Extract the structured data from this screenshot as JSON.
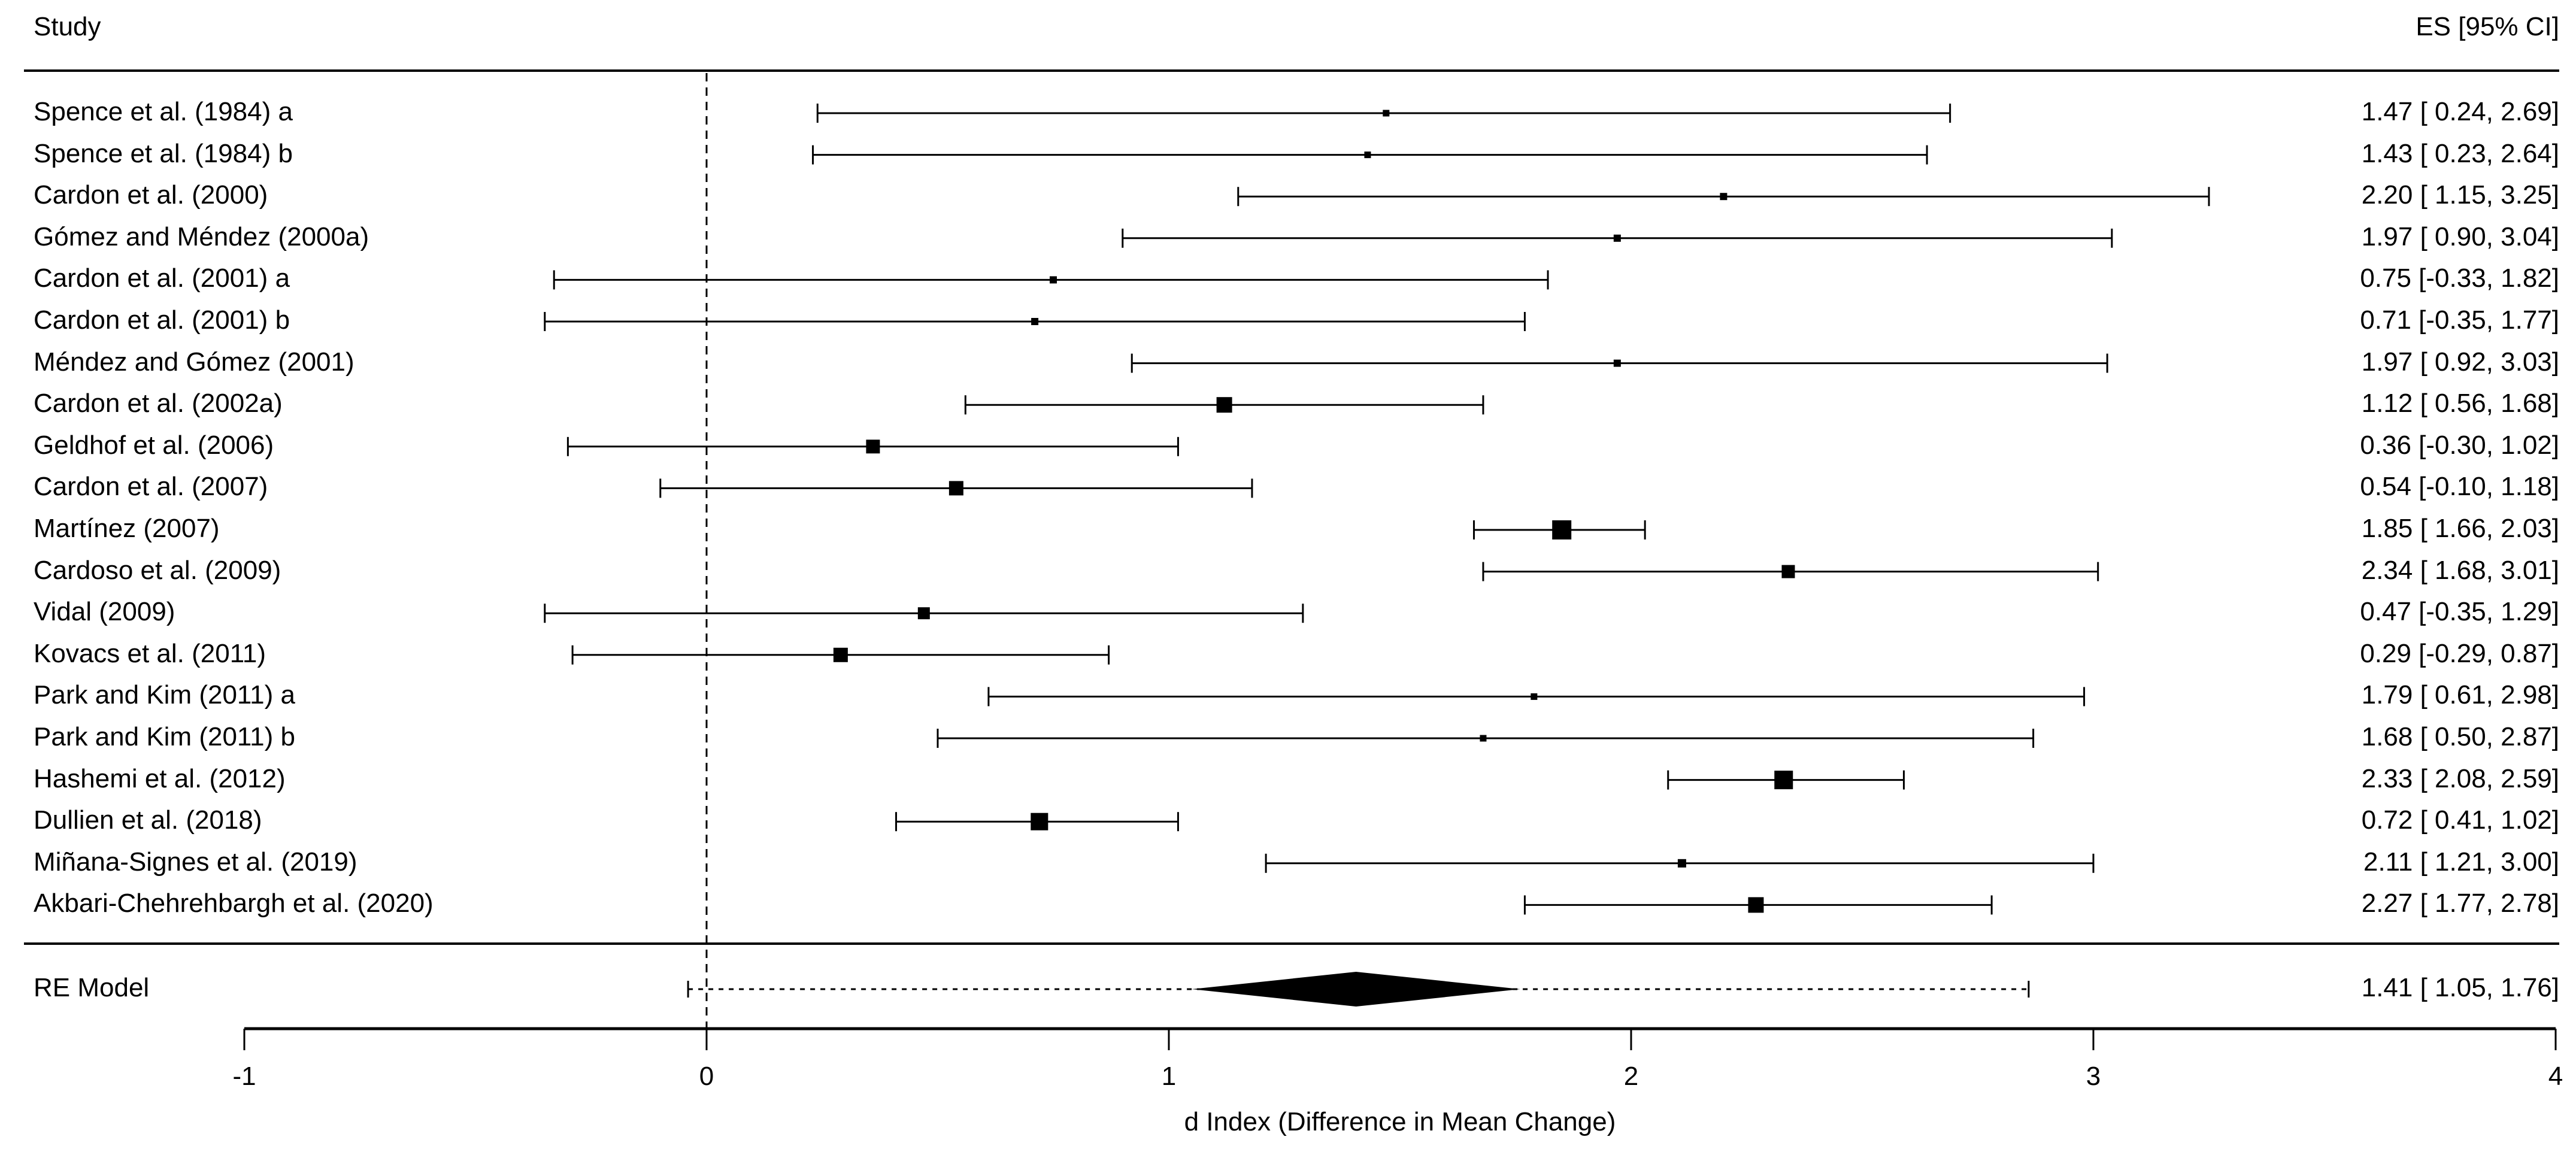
{
  "page": {
    "background": "#ffffff",
    "foreground": "#000000"
  },
  "header": {
    "study": "Study",
    "es": "ES [95% CI]"
  },
  "chart_data": {
    "type": "forest",
    "xlabel": "d Index (Difference in Mean Change)",
    "xlim": [
      -1,
      4
    ],
    "x_ticks": [
      -1,
      0,
      1,
      2,
      3,
      4
    ],
    "zero_reference": 0,
    "grid": false,
    "studies": [
      {
        "label": "Spence et al. (1984) a",
        "es": 1.47,
        "lo": 0.24,
        "hi": 2.69,
        "text": "1.47 [ 0.24, 2.69]",
        "size": 11
      },
      {
        "label": "Spence et al. (1984) b",
        "es": 1.43,
        "lo": 0.23,
        "hi": 2.64,
        "text": "1.43 [ 0.23, 2.64]",
        "size": 11
      },
      {
        "label": "Cardon et al. (2000)",
        "es": 2.2,
        "lo": 1.15,
        "hi": 3.25,
        "text": "2.20 [ 1.15, 3.25]",
        "size": 12
      },
      {
        "label": "Gómez and Méndez (2000a)",
        "es": 1.97,
        "lo": 0.9,
        "hi": 3.04,
        "text": "1.97 [ 0.90, 3.04]",
        "size": 12
      },
      {
        "label": "Cardon et al. (2001) a",
        "es": 0.75,
        "lo": -0.33,
        "hi": 1.82,
        "text": "0.75 [-0.33, 1.82]",
        "size": 12
      },
      {
        "label": "Cardon et al. (2001) b",
        "es": 0.71,
        "lo": -0.35,
        "hi": 1.77,
        "text": "0.71 [-0.35, 1.77]",
        "size": 12
      },
      {
        "label": "Méndez and Gómez (2001)",
        "es": 1.97,
        "lo": 0.92,
        "hi": 3.03,
        "text": "1.97 [ 0.92, 3.03]",
        "size": 12
      },
      {
        "label": "Cardon et al. (2002a)",
        "es": 1.12,
        "lo": 0.56,
        "hi": 1.68,
        "text": "1.12 [ 0.56, 1.68]",
        "size": 26
      },
      {
        "label": "Geldhof et al. (2006)",
        "es": 0.36,
        "lo": -0.3,
        "hi": 1.02,
        "text": "0.36 [-0.30, 1.02]",
        "size": 23
      },
      {
        "label": "Cardon et al. (2007)",
        "es": 0.54,
        "lo": -0.1,
        "hi": 1.18,
        "text": "0.54 [-0.10, 1.18]",
        "size": 24
      },
      {
        "label": "Martínez (2007)",
        "es": 1.85,
        "lo": 1.66,
        "hi": 2.03,
        "text": "1.85 [ 1.66, 2.03]",
        "size": 32
      },
      {
        "label": "Cardoso et al. (2009)",
        "es": 2.34,
        "lo": 1.68,
        "hi": 3.01,
        "text": "2.34 [ 1.68, 3.01]",
        "size": 22
      },
      {
        "label": "Vidal (2009)",
        "es": 0.47,
        "lo": -0.35,
        "hi": 1.29,
        "text": "0.47 [-0.35, 1.29]",
        "size": 20
      },
      {
        "label": "Kovacs et al. (2011)",
        "es": 0.29,
        "lo": -0.29,
        "hi": 0.87,
        "text": "0.29 [-0.29, 0.87]",
        "size": 24
      },
      {
        "label": "Park and Kim (2011) a",
        "es": 1.79,
        "lo": 0.61,
        "hi": 2.98,
        "text": "1.79 [ 0.61, 2.98]",
        "size": 11
      },
      {
        "label": "Park and Kim (2011) b",
        "es": 1.68,
        "lo": 0.5,
        "hi": 2.87,
        "text": "1.68 [ 0.50, 2.87]",
        "size": 11
      },
      {
        "label": "Hashemi et al. (2012)",
        "es": 2.33,
        "lo": 2.08,
        "hi": 2.59,
        "text": "2.33 [ 2.08, 2.59]",
        "size": 31
      },
      {
        "label": "Dullien et al. (2018)",
        "es": 0.72,
        "lo": 0.41,
        "hi": 1.02,
        "text": "0.72 [ 0.41, 1.02]",
        "size": 29
      },
      {
        "label": "Miñana-Signes et al. (2019)",
        "es": 2.11,
        "lo": 1.21,
        "hi": 3.0,
        "text": "2.11 [ 1.21, 3.00]",
        "size": 14
      },
      {
        "label": "Akbari-Chehrehbargh et al. (2020)",
        "es": 2.27,
        "lo": 1.77,
        "hi": 2.78,
        "text": "2.27 [ 1.77, 2.78]",
        "size": 26
      }
    ],
    "summary": {
      "label": "RE Model",
      "es": 1.41,
      "lo": 1.05,
      "hi": 1.76,
      "text": "1.41 [ 1.05, 1.76]",
      "pi_lo": -0.04,
      "pi_hi": 2.86
    }
  }
}
